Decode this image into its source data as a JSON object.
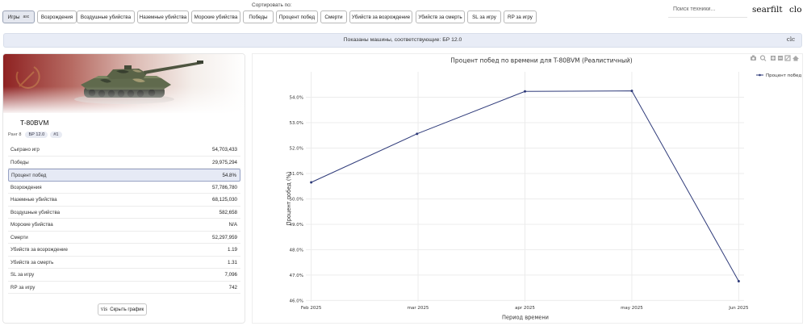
{
  "sort": {
    "label": "Сортировать по:",
    "buttons": [
      {
        "label": "Игры",
        "active": true,
        "suffix": "asc"
      },
      {
        "label": "Возрождения"
      },
      {
        "label": "Воздушные убийства"
      },
      {
        "label": "Наземные убийства"
      },
      {
        "label": "Морские убийства"
      },
      {
        "label": "Победы"
      },
      {
        "label": "Процент побед"
      },
      {
        "label": "Смерти"
      },
      {
        "label": "Убийств за возрождение"
      },
      {
        "label": "Убийств за смерть"
      },
      {
        "label": "SL за игру"
      },
      {
        "label": "RP за игру"
      }
    ]
  },
  "search": {
    "placeholder": "Поиск техники...",
    "suffix": "sear"
  },
  "toolbar_icons": {
    "filter": "filt",
    "close": "clo"
  },
  "banner": {
    "text": "Показаны машины, соответствующие: БР 12.0",
    "close": "clc"
  },
  "vehicle": {
    "name": "T-80BVM",
    "tags": [
      "Ранг 8",
      "БР 12.0",
      "#1"
    ],
    "stats": [
      {
        "label": "Сыграно игр",
        "value": "54,703,433"
      },
      {
        "label": "Победы",
        "value": "29,975,294"
      },
      {
        "label": "Процент побед",
        "value": "54.8%",
        "highlight": true
      },
      {
        "label": "Возрождения",
        "value": "57,786,780"
      },
      {
        "label": "Наземные убийства",
        "value": "68,125,030"
      },
      {
        "label": "Воздушные убийства",
        "value": "582,658"
      },
      {
        "label": "Морские убийства",
        "value": "N/A"
      },
      {
        "label": "Смерти",
        "value": "52,297,959"
      },
      {
        "label": "Убийств за возрождение",
        "value": "1.19"
      },
      {
        "label": "Убийств за смерть",
        "value": "1.31"
      },
      {
        "label": "SL за игру",
        "value": "7,096"
      },
      {
        "label": "RP за игру",
        "value": "742"
      }
    ],
    "hide_button": {
      "label": "Скрыть график",
      "icon_text": "vis"
    }
  },
  "chart_data": {
    "type": "line",
    "title": "Процент побед по времени для T-80BVM (Реалистичный)",
    "xlabel": "Период времени",
    "ylabel": "Процент побед (%)",
    "categories": [
      "Feb 2025",
      "mar 2025",
      "apr 2025",
      "may 2025",
      "Jun 2025"
    ],
    "x": [
      0,
      1,
      2,
      3,
      4
    ],
    "series": [
      {
        "name": "Процент побед",
        "x": [
          0,
          0.99,
          2,
          3,
          4
        ],
        "values": [
          50.65,
          52.56,
          54.23,
          54.25,
          46.76
        ],
        "color": "#2f3b7a"
      }
    ],
    "ylim": [
      45.95,
      55.0
    ],
    "yticks": [
      46.0,
      47.0,
      48.0,
      49.0,
      50.0,
      51.0,
      52.0,
      53.0,
      54.0
    ],
    "ytick_labels": [
      "46.0%",
      "47.0%",
      "48.0%",
      "49.0%",
      "50.0%",
      "51.0%",
      "52.0%",
      "53.0%",
      "54.0%"
    ],
    "grid": true,
    "legend": "top-right"
  }
}
